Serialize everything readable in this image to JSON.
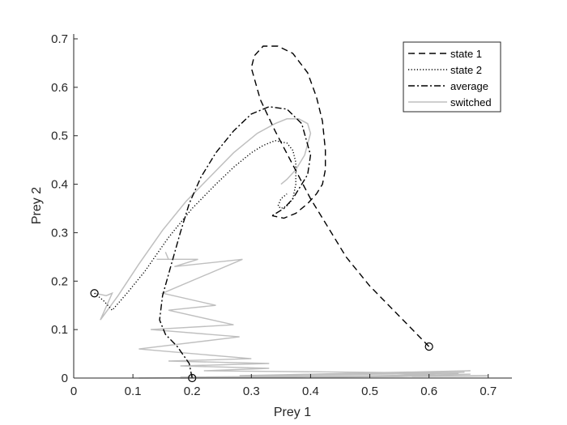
{
  "chart_data": {
    "type": "line",
    "title": "",
    "xlabel": "Prey 1",
    "ylabel": "Prey 2",
    "xlim": [
      0,
      0.74
    ],
    "ylim": [
      0,
      0.71
    ],
    "xticks": [
      "0",
      "0.1",
      "0.2",
      "0.3",
      "0.4",
      "0.5",
      "0.6",
      "0.7"
    ],
    "yticks": [
      "0",
      "0.1",
      "0.2",
      "0.3",
      "0.4",
      "0.5",
      "0.6",
      "0.7"
    ],
    "grid": false,
    "legend_position": "top-right",
    "series": [
      {
        "name": "state 1",
        "style": "dashed",
        "color": "#000000",
        "x": [
          0.6,
          0.58,
          0.54,
          0.5,
          0.46,
          0.43,
          0.4,
          0.37,
          0.34,
          0.315,
          0.3,
          0.305,
          0.32,
          0.345,
          0.37,
          0.395,
          0.41,
          0.42,
          0.425,
          0.425,
          0.42,
          0.41,
          0.395,
          0.375,
          0.355,
          0.335
        ],
        "y": [
          0.065,
          0.09,
          0.14,
          0.19,
          0.25,
          0.31,
          0.37,
          0.44,
          0.51,
          0.575,
          0.64,
          0.665,
          0.685,
          0.685,
          0.67,
          0.63,
          0.58,
          0.53,
          0.47,
          0.43,
          0.4,
          0.38,
          0.36,
          0.34,
          0.33,
          0.335
        ]
      },
      {
        "name": "state 2",
        "style": "dotted",
        "color": "#000000",
        "x": [
          0.035,
          0.05,
          0.065,
          0.09,
          0.12,
          0.16,
          0.2,
          0.24,
          0.27,
          0.3,
          0.32,
          0.34,
          0.36,
          0.37,
          0.375,
          0.375,
          0.37,
          0.36,
          0.35,
          0.345,
          0.35,
          0.36
        ],
        "y": [
          0.175,
          0.16,
          0.14,
          0.175,
          0.22,
          0.29,
          0.35,
          0.4,
          0.435,
          0.465,
          0.48,
          0.49,
          0.485,
          0.47,
          0.445,
          0.4,
          0.37,
          0.355,
          0.35,
          0.355,
          0.37,
          0.38
        ]
      },
      {
        "name": "average",
        "style": "dash-dot",
        "color": "#000000",
        "x": [
          0.2,
          0.195,
          0.175,
          0.155,
          0.145,
          0.15,
          0.165,
          0.18,
          0.195,
          0.215,
          0.24,
          0.27,
          0.3,
          0.33,
          0.36,
          0.385,
          0.4,
          0.395,
          0.385,
          0.37,
          0.355,
          0.335
        ],
        "y": [
          0.0,
          0.03,
          0.065,
          0.09,
          0.12,
          0.17,
          0.235,
          0.3,
          0.36,
          0.415,
          0.465,
          0.51,
          0.545,
          0.56,
          0.555,
          0.525,
          0.46,
          0.42,
          0.4,
          0.37,
          0.35,
          0.335
        ]
      },
      {
        "name": "switched",
        "style": "solid",
        "color": "#bfbfbf",
        "x": [
          0.035,
          0.055,
          0.065,
          0.045,
          0.075,
          0.11,
          0.15,
          0.19,
          0.23,
          0.27,
          0.31,
          0.34,
          0.36,
          0.38,
          0.395,
          0.4,
          0.39,
          0.375,
          0.36,
          0.35
        ],
        "y": [
          0.175,
          0.17,
          0.175,
          0.12,
          0.17,
          0.235,
          0.305,
          0.365,
          0.415,
          0.465,
          0.505,
          0.525,
          0.535,
          0.535,
          0.525,
          0.505,
          0.46,
          0.43,
          0.41,
          0.4
        ]
      }
    ],
    "switched_jitter": {
      "x": [
        0.155,
        0.16,
        0.14,
        0.21,
        0.17,
        0.285,
        0.15,
        0.24,
        0.16,
        0.27,
        0.13,
        0.28,
        0.11,
        0.3,
        0.16,
        0.33,
        0.18,
        0.33,
        0.22,
        0.65,
        0.28,
        0.67,
        0.32,
        0.66,
        0.5,
        0.67,
        0.35,
        0.7,
        0.18,
        0.62,
        0.3,
        0.66,
        0.11,
        0.7,
        0.18,
        0.28
      ],
      "y": [
        0.26,
        0.245,
        0.245,
        0.245,
        0.23,
        0.245,
        0.175,
        0.15,
        0.14,
        0.11,
        0.1,
        0.085,
        0.06,
        0.04,
        0.035,
        0.03,
        0.025,
        0.02,
        0.015,
        0.01,
        0.005,
        0.015,
        0.005,
        0.012,
        0.003,
        0.008,
        0.002,
        0.005,
        0.002,
        0.006,
        0.001,
        0.004,
        0.0,
        0.004,
        0.0,
        0.002
      ]
    },
    "markers": [
      {
        "x": 0.6,
        "y": 0.065
      },
      {
        "x": 0.2,
        "y": 0.0
      },
      {
        "x": 0.035,
        "y": 0.175
      }
    ]
  }
}
